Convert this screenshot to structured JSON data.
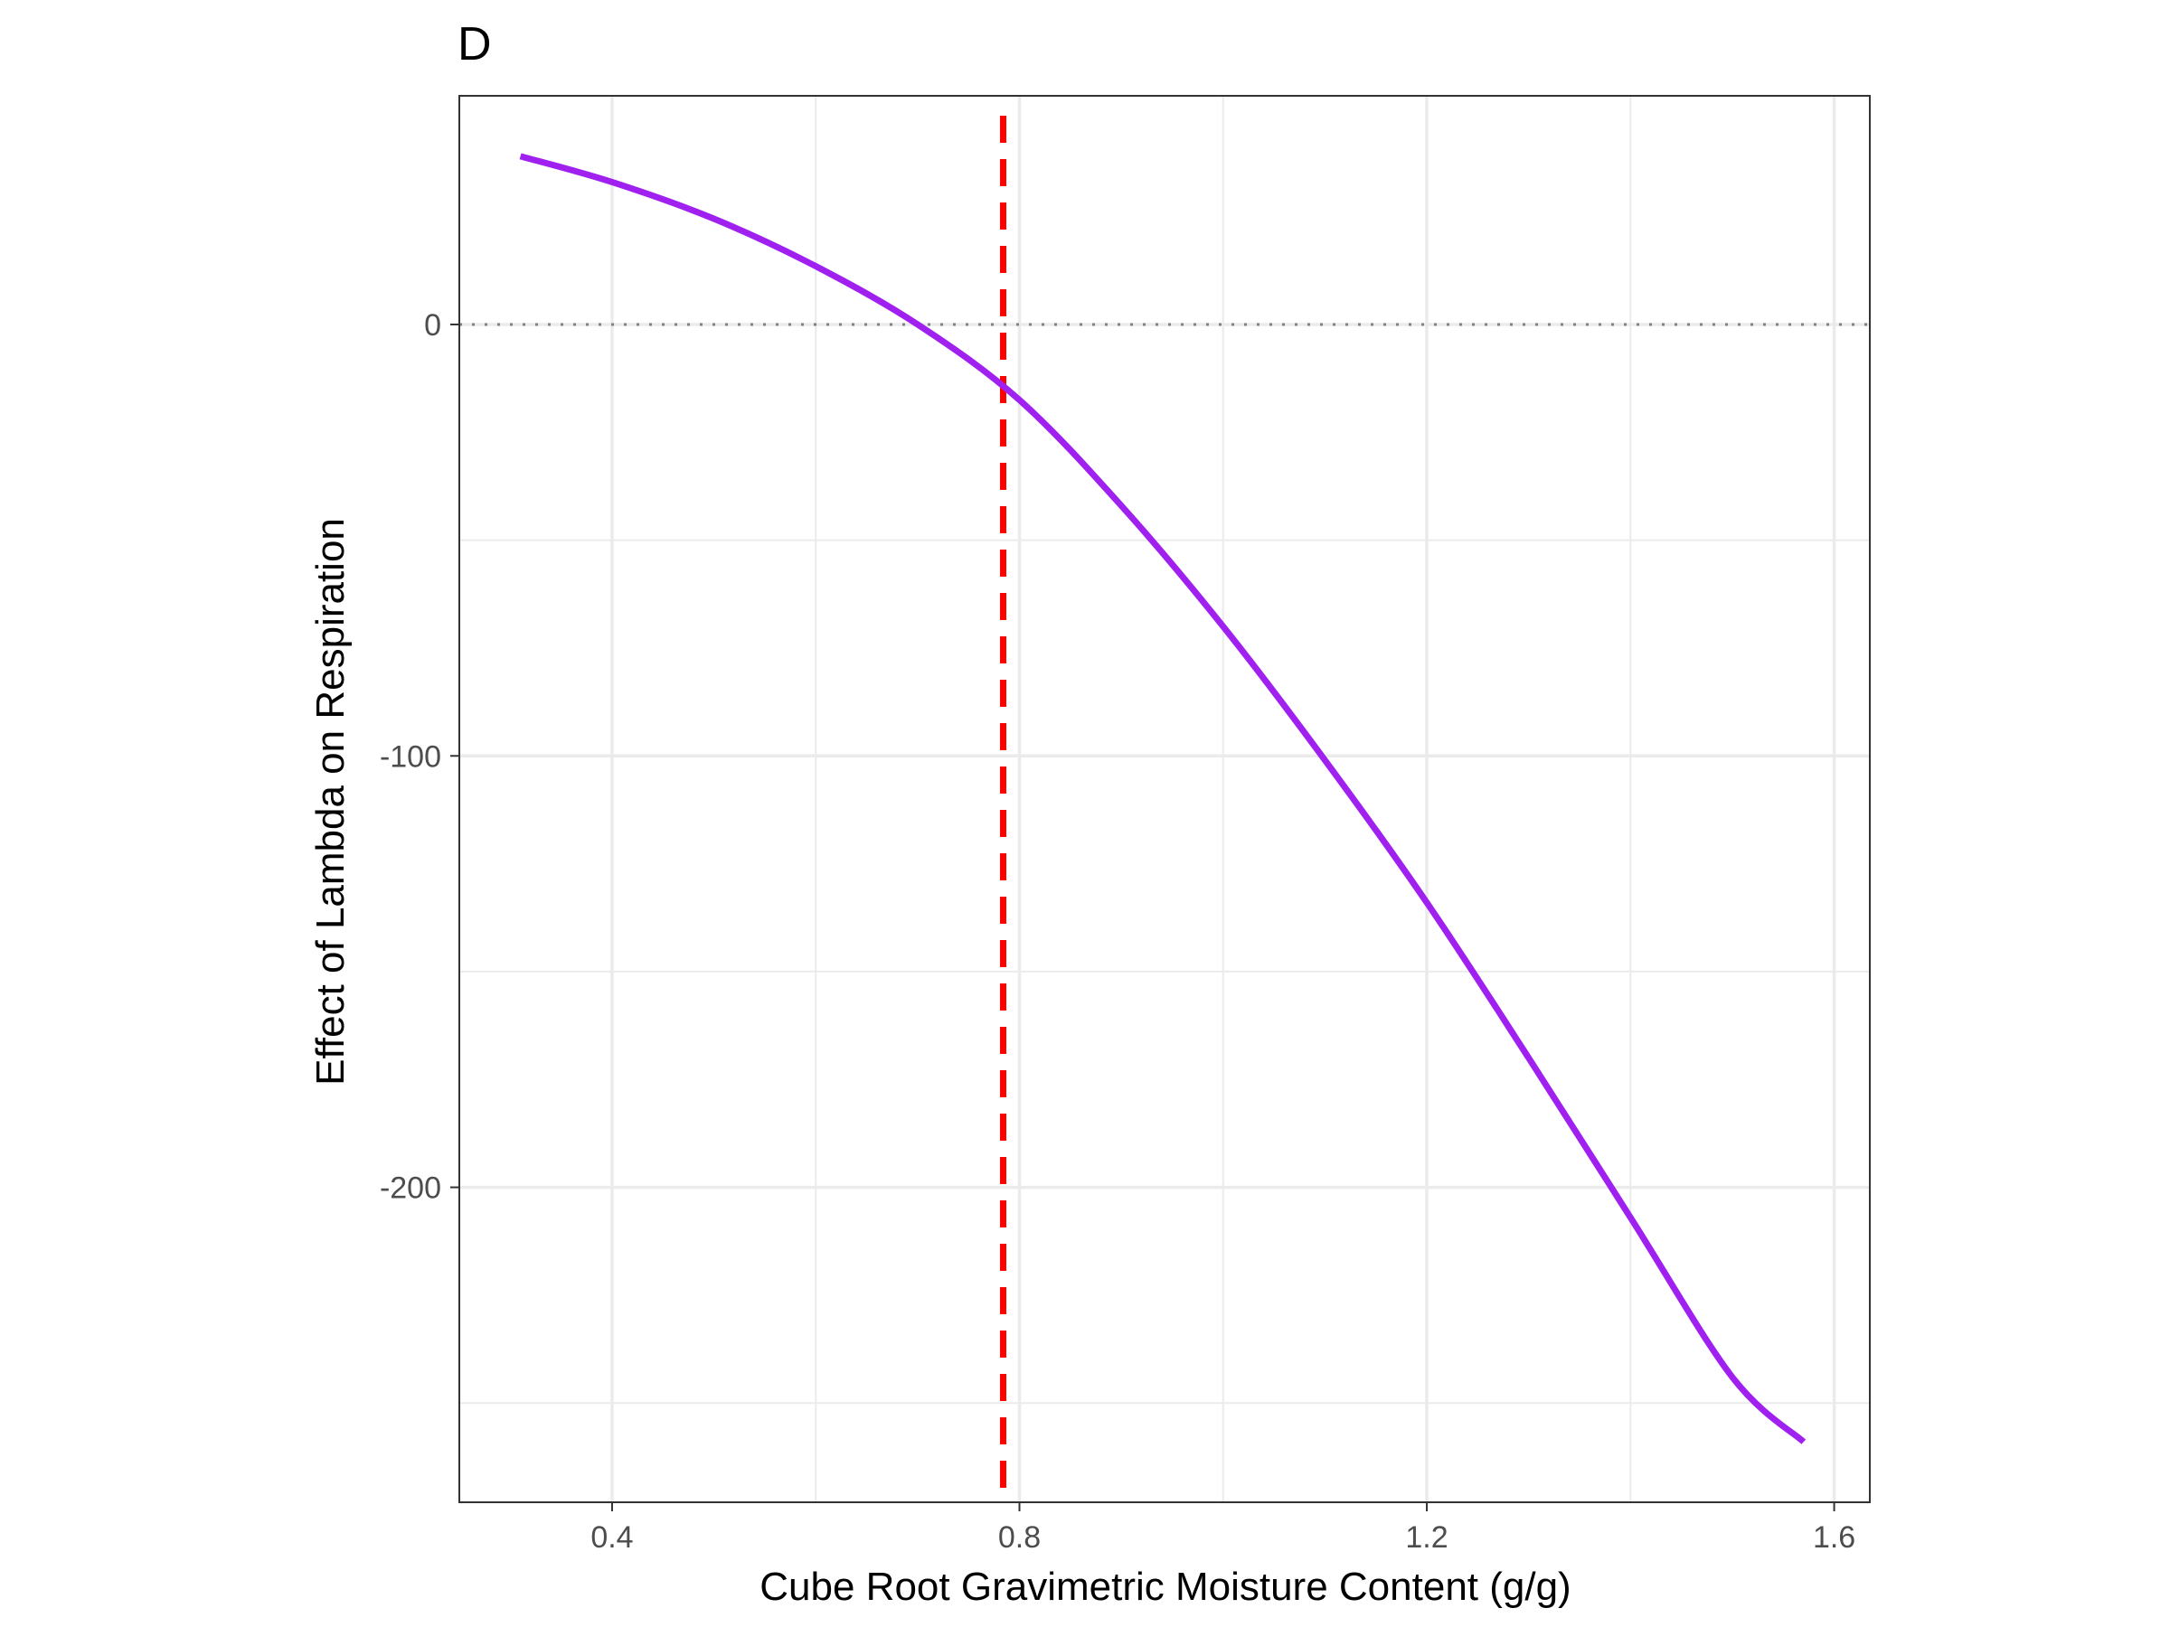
{
  "chart_data": {
    "type": "line",
    "title": "D",
    "xlabel": "Cube Root Gravimetric Moisture Content (g/g)",
    "ylabel": "Effect of Lambda on Respiration",
    "xlim": [
      0.25,
      1.635
    ],
    "ylim": [
      -273,
      53
    ],
    "x_ticks": [
      {
        "value": 0.4,
        "label": "0.4"
      },
      {
        "value": 0.8,
        "label": "0.8"
      },
      {
        "value": 1.2,
        "label": "1.2"
      },
      {
        "value": 1.6,
        "label": "1.6"
      }
    ],
    "y_ticks": [
      {
        "value": 0,
        "label": "0"
      },
      {
        "value": -100,
        "label": "-100"
      },
      {
        "value": -200,
        "label": "-200"
      }
    ],
    "x_minor_ticks": [
      0.6,
      1.0,
      1.4
    ],
    "y_minor_ticks": [
      -50,
      -150,
      -250
    ],
    "grid": true,
    "series": [
      {
        "color": "#a020f0",
        "x": [
          0.31,
          0.4,
          0.5,
          0.6,
          0.7,
          0.8,
          0.9,
          1.0,
          1.1,
          1.2,
          1.3,
          1.4,
          1.5,
          1.57
        ],
        "y": [
          39,
          33,
          24.5,
          13.5,
          0,
          -17.5,
          -42,
          -70,
          -101,
          -134,
          -170,
          -207,
          -244,
          -259
        ]
      }
    ],
    "reference_lines": [
      {
        "axis": "y",
        "value": 0,
        "style": "dotted",
        "color": "#808080"
      },
      {
        "axis": "x",
        "value": 0.784,
        "style": "dashed",
        "color": "#ff0000"
      }
    ]
  }
}
